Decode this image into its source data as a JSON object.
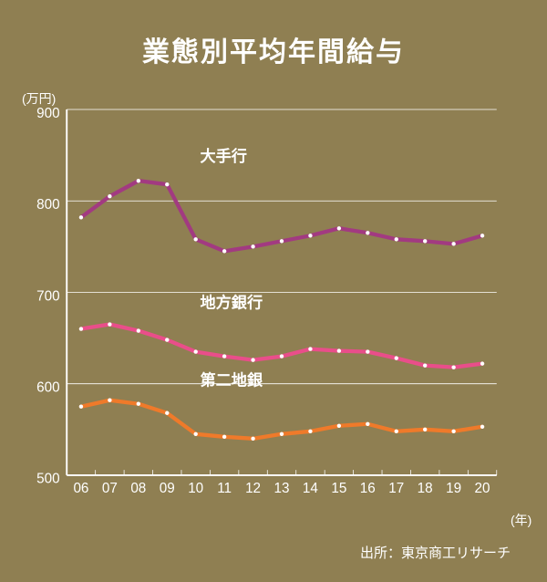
{
  "title": "業態別平均年間給与",
  "y_unit": "(万円)",
  "x_unit": "(年)",
  "source": "出所：東京商工リサーチ",
  "chart": {
    "type": "line",
    "background_color": "#8f7f52",
    "text_color": "#ffffff",
    "grid_color": "#ffffff",
    "line_width": 4.5,
    "marker_radius": 2.3,
    "marker_color": "#ffffff",
    "title_fontsize": 30,
    "axis_label_fontsize": 16,
    "series_label_fontsize": 18,
    "ylim": [
      500,
      900
    ],
    "ytick_step": 100,
    "yticks": [
      500,
      600,
      700,
      800,
      900
    ],
    "x_categories": [
      "06",
      "07",
      "08",
      "09",
      "10",
      "11",
      "12",
      "13",
      "14",
      "15",
      "16",
      "17",
      "18",
      "19",
      "20"
    ],
    "series": [
      {
        "name": "大手行",
        "label": "大手行",
        "color": "#a23a81",
        "label_x_index": 4,
        "label_y_value": 843,
        "values": [
          782,
          805,
          822,
          818,
          758,
          745,
          750,
          756,
          762,
          770,
          765,
          758,
          756,
          753,
          762
        ]
      },
      {
        "name": "地方銀行",
        "label": "地方銀行",
        "color": "#e94e8a",
        "label_x_index": 4,
        "label_y_value": 683,
        "values": [
          660,
          665,
          658,
          648,
          635,
          630,
          626,
          630,
          638,
          636,
          635,
          628,
          620,
          618,
          622
        ]
      },
      {
        "name": "第二地銀",
        "label": "第二地銀",
        "color": "#ef7a2a",
        "label_x_index": 4,
        "label_y_value": 598,
        "values": [
          575,
          582,
          578,
          568,
          545,
          542,
          540,
          545,
          548,
          554,
          556,
          548,
          550,
          548,
          553
        ]
      }
    ]
  }
}
